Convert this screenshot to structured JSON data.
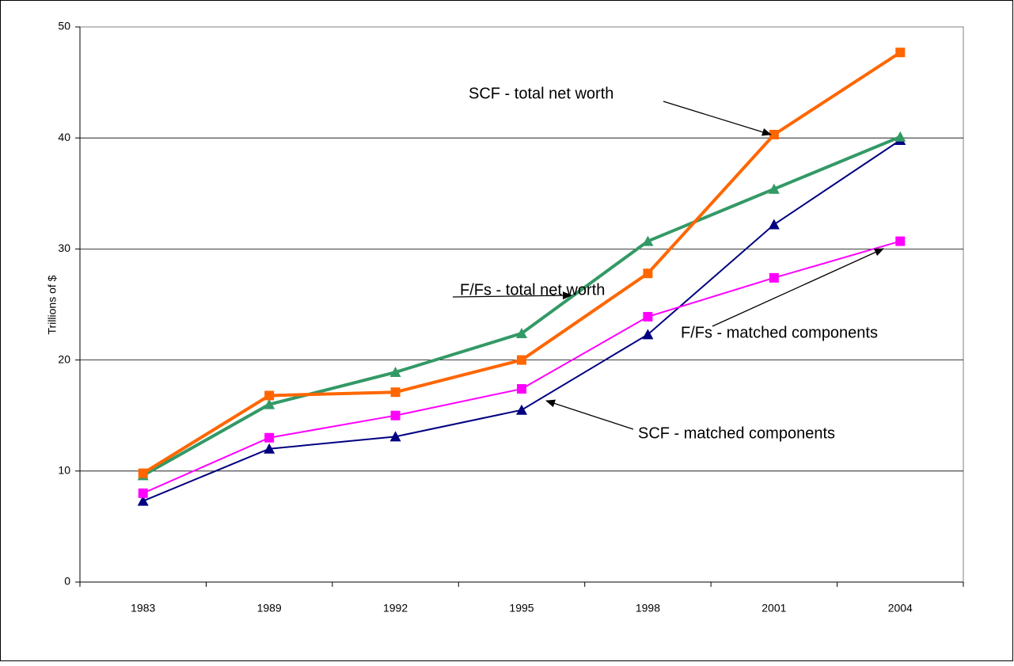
{
  "chart_data": {
    "type": "line",
    "y_label": "Trillions of $",
    "categories": [
      "1983",
      "1989",
      "1992",
      "1995",
      "1998",
      "2001",
      "2004"
    ],
    "series": [
      {
        "name": "SCF - matched components",
        "color": "#000080",
        "marker": "triangle",
        "values": [
          7.3,
          12.0,
          13.1,
          15.5,
          22.3,
          32.2,
          39.8
        ]
      },
      {
        "name": "F/Fs - matched components",
        "color": "#ff00ff",
        "marker": "square",
        "values": [
          8.0,
          13.0,
          15.0,
          17.4,
          23.9,
          27.4,
          30.7
        ]
      },
      {
        "name": "F/Fs - total net worth",
        "color": "#339966",
        "marker": "triangle",
        "values": [
          9.6,
          16.0,
          18.9,
          22.4,
          30.7,
          35.4,
          40.1
        ]
      },
      {
        "name": "SCF - total net worth",
        "color": "#ff6600",
        "marker": "square",
        "values": [
          9.8,
          16.8,
          17.1,
          20.0,
          27.8,
          40.3,
          47.7
        ]
      }
    ],
    "ylim": [
      0,
      50
    ],
    "yticks": [
      0,
      10,
      20,
      30,
      40,
      50
    ],
    "grid": true
  }
}
